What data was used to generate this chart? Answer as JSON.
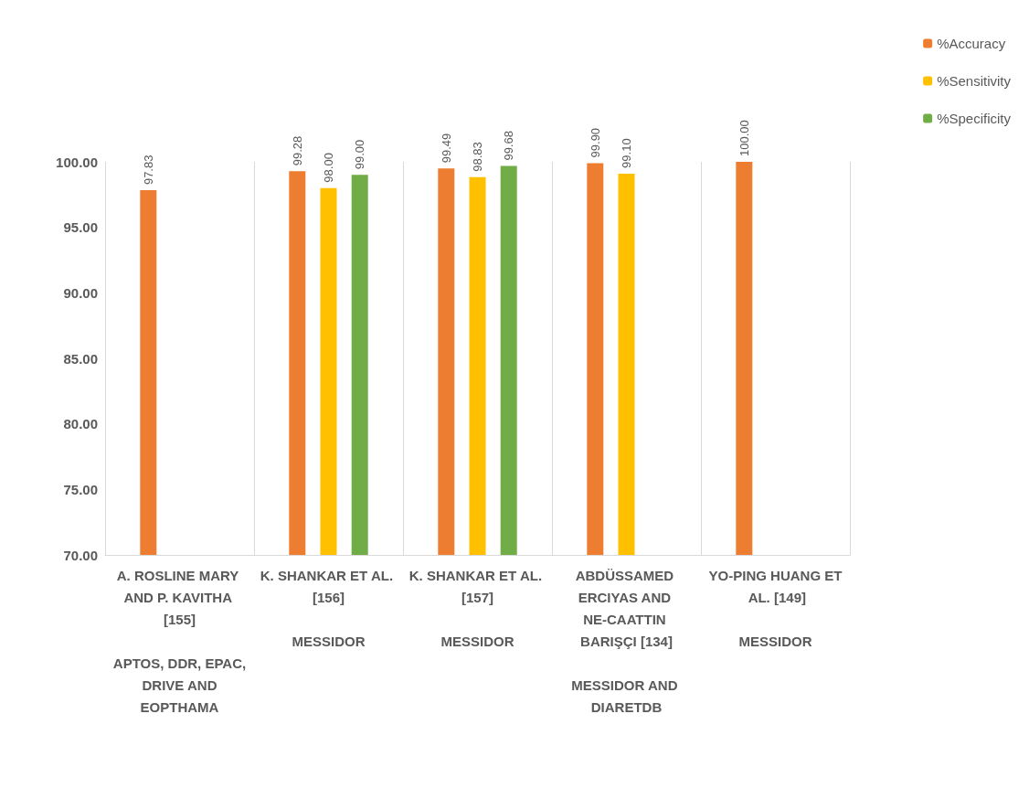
{
  "chart_data": {
    "type": "bar",
    "categories": [
      "A. ROSLINE MARY AND P. KAVITHA [155]\n\nAPTOS, DDR, EPAC, DRIVE AND EOPTHAMA",
      "K. SHANKAR ET AL. [156]\n\nMESSIDOR",
      "K. SHANKAR ET AL. [157]\n\nMESSIDOR",
      "ABDÜSSAMED ERCIYAS AND NE-CAATTIN BARIŞÇI [134]\n\nMESSIDOR AND DIARETDB",
      "YO-PING HUANG ET AL. [149]\n\nMESSIDOR"
    ],
    "series": [
      {
        "name": "%Accuracy",
        "color": "#ed7d31",
        "values": [
          97.83,
          99.28,
          99.49,
          99.9,
          100.0
        ],
        "value_labels": [
          "97.83",
          "99.28",
          "99.49",
          "99.90",
          "100.00"
        ]
      },
      {
        "name": "%Sensitivity",
        "color": "#ffc000",
        "values": [
          null,
          98.0,
          98.83,
          99.1,
          null
        ],
        "value_labels": [
          null,
          "98.00",
          "98.83",
          "99.10",
          null
        ]
      },
      {
        "name": "%Specificity",
        "color": "#70ad47",
        "values": [
          null,
          99.0,
          99.68,
          null,
          null
        ],
        "value_labels": [
          null,
          "99.00",
          "99.68",
          null,
          null
        ]
      }
    ],
    "ylim": [
      70,
      100
    ],
    "yticks": [
      {
        "value": 70,
        "label": "70.00"
      },
      {
        "value": 75,
        "label": "75.00"
      },
      {
        "value": 80,
        "label": "80.00"
      },
      {
        "value": 85,
        "label": "85.00"
      },
      {
        "value": 90,
        "label": "90.00"
      },
      {
        "value": 95,
        "label": "95.00"
      },
      {
        "value": 100,
        "label": "100.00"
      }
    ],
    "grid": "x",
    "legend": "top right"
  }
}
